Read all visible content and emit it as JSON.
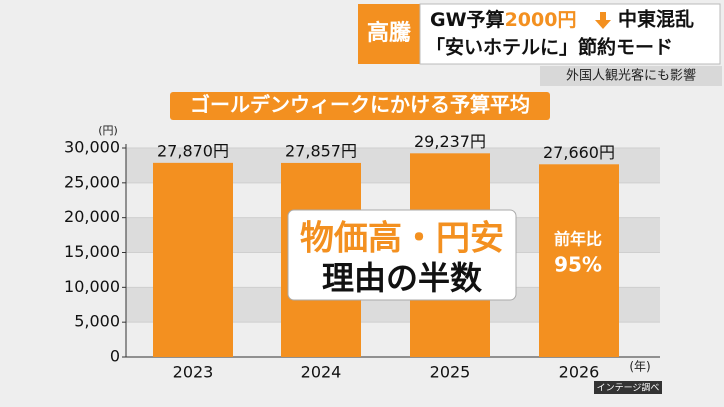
{
  "chart_data": {
    "type": "bar",
    "headline": {
      "tag": "高騰",
      "line1": [
        "GW予算",
        "2000円",
        "中東混乱"
      ],
      "line2": "「安いホテルに」節約モード",
      "sub": "外国人観光客にも影響"
    },
    "title": "ゴールデンウィークにかける予算平均",
    "y_unit": "(円)",
    "x_unit": "(年)",
    "categories": [
      "2023",
      "2024",
      "2025",
      "2026"
    ],
    "values": [
      27870,
      27857,
      29237,
      27660
    ],
    "value_labels": [
      "27,870円",
      "27,857円",
      "29,237円",
      "27,660円"
    ],
    "color": "#f39020",
    "ylim": [
      0,
      30000
    ],
    "yticks": [
      0,
      {
        "value": 5000,
        "label": "5,000"
      },
      {
        "value": 10000,
        "label": "10,000"
      },
      {
        "value": 15000,
        "label": "15,000"
      },
      {
        "value": 20000,
        "label": "20,000"
      },
      {
        "value": 25000,
        "label": "25,000"
      },
      {
        "value": 30000,
        "label": "30,000"
      }
    ],
    "grid": true,
    "annotations": {
      "box": [
        "物価高・円安",
        "理由の半数"
      ],
      "bar_note": [
        "前年比",
        "95%"
      ]
    },
    "source": "インテージ調べ"
  }
}
